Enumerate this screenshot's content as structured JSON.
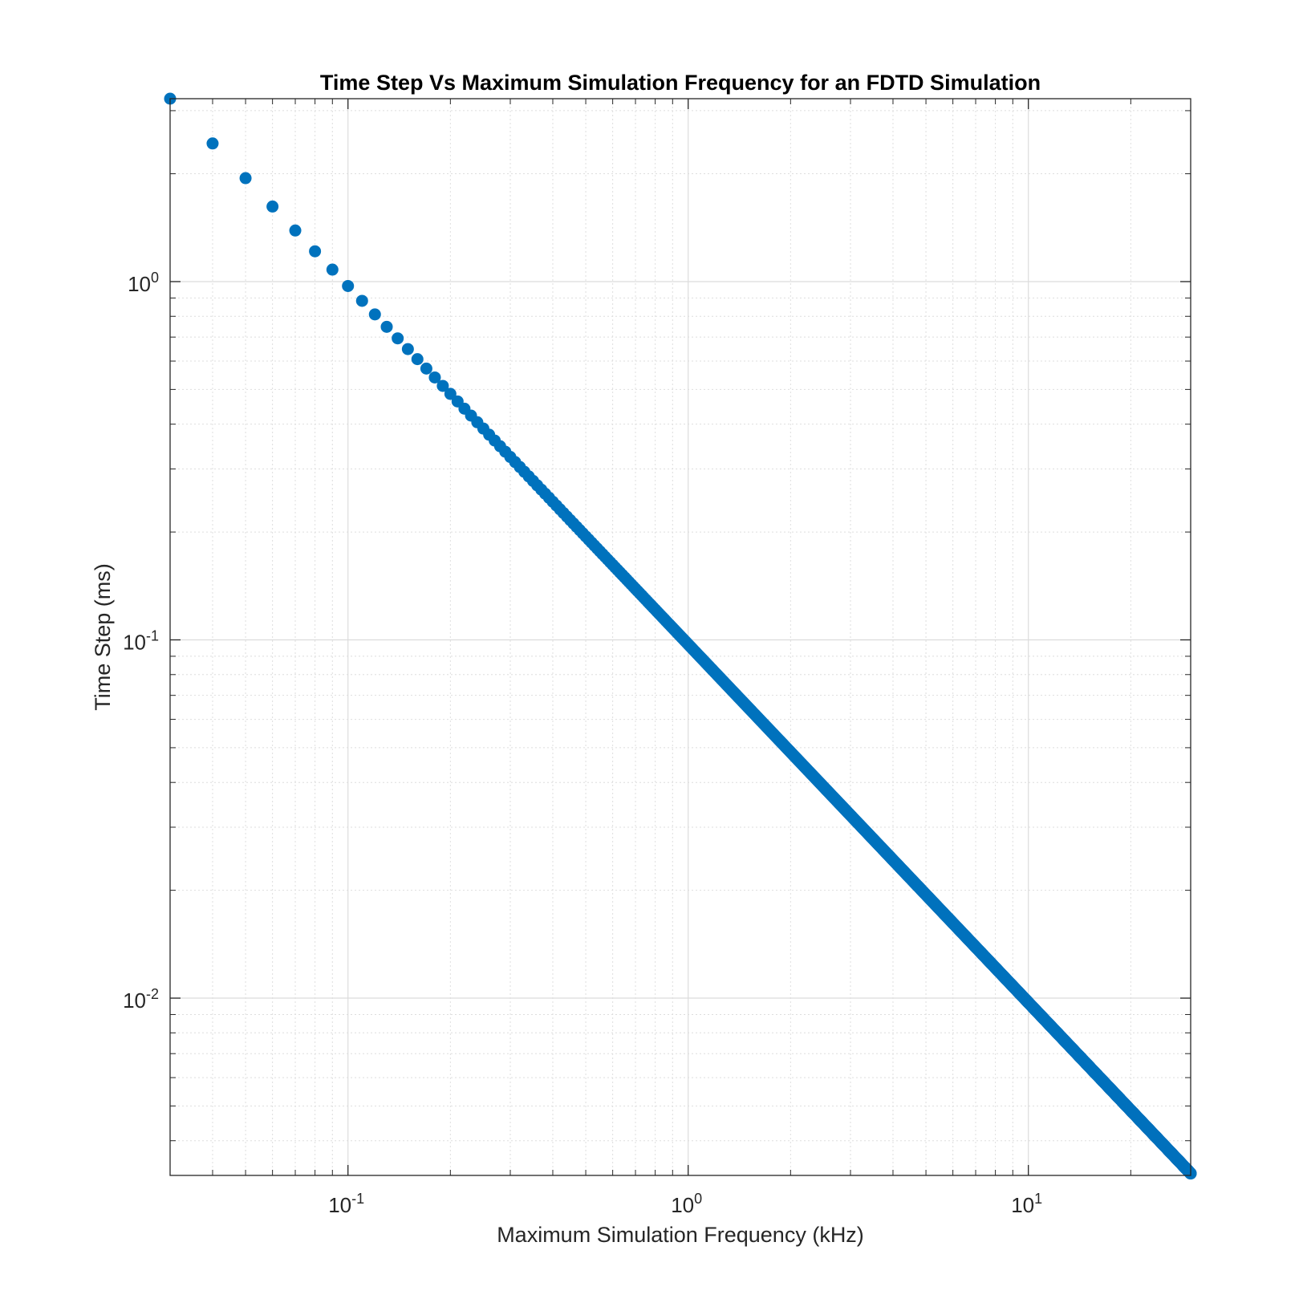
{
  "chart_data": {
    "type": "scatter",
    "title": "Time Step Vs Maximum Simulation Frequency for an FDTD Simulation",
    "xlabel": "Maximum Simulation Frequency (kHz)",
    "ylabel": "Time Step (ms)",
    "xscale": "log",
    "yscale": "log",
    "xlim": [
      0.03,
      30
    ],
    "ylim": [
      0.0032,
      3.24
    ],
    "grid": true,
    "minor_grid": true,
    "marker": "filled-circle",
    "marker_color": "#0072BD",
    "x_ticks": [
      {
        "value": 0.1,
        "base": "10",
        "exp": "-1"
      },
      {
        "value": 1,
        "base": "10",
        "exp": "0"
      },
      {
        "value": 10,
        "base": "10",
        "exp": "1"
      }
    ],
    "y_ticks": [
      {
        "value": 0.01,
        "base": "10",
        "exp": "-2"
      },
      {
        "value": 0.1,
        "base": "10",
        "exp": "-1"
      },
      {
        "value": 1,
        "base": "10",
        "exp": "0"
      }
    ],
    "series": [
      {
        "relation": "y = 0.0972 / x",
        "x_start": 0.03,
        "x_step": 0.01,
        "x_end": 30,
        "sample_points": [
          {
            "x": 0.03,
            "y": 3.24
          },
          {
            "x": 0.04,
            "y": 2.43
          },
          {
            "x": 0.05,
            "y": 1.944
          },
          {
            "x": 0.06,
            "y": 1.62
          },
          {
            "x": 0.07,
            "y": 1.389
          },
          {
            "x": 0.08,
            "y": 1.215
          },
          {
            "x": 0.09,
            "y": 1.08
          },
          {
            "x": 0.1,
            "y": 0.972
          },
          {
            "x": 1,
            "y": 0.0972
          },
          {
            "x": 10,
            "y": 0.00972
          },
          {
            "x": 30,
            "y": 0.00324
          }
        ]
      }
    ]
  }
}
